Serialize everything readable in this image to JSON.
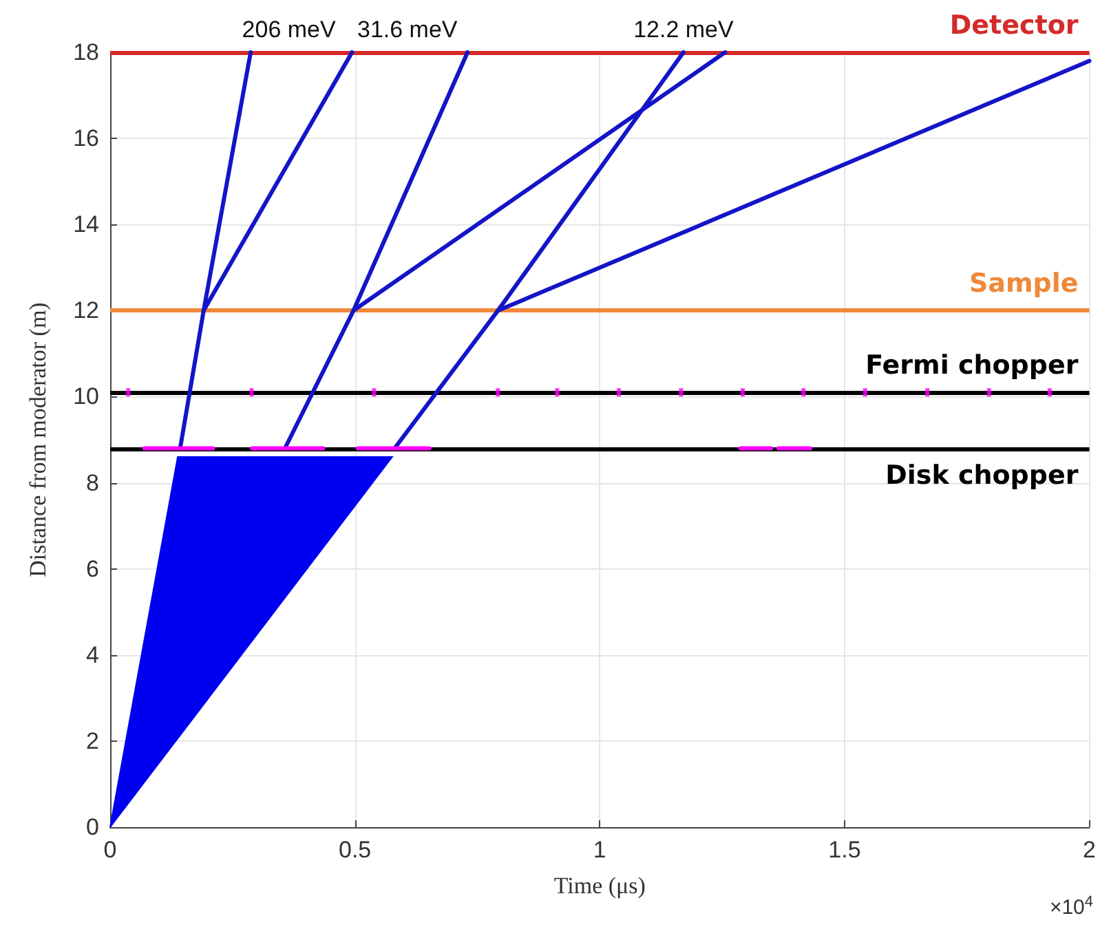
{
  "chart_data": {
    "type": "line",
    "xlabel": "Time (μs)",
    "ylabel": "Distance from moderator (m)",
    "xlim": [
      0,
      2
    ],
    "xticks": [
      0,
      0.5,
      1,
      1.5,
      2
    ],
    "ylim": [
      0,
      18
    ],
    "yticks": [
      0,
      2,
      4,
      6,
      8,
      10,
      12,
      14,
      16,
      18
    ],
    "grid": true,
    "marker": "none",
    "line_style": "solid",
    "series": [
      {
        "type": "area",
        "color": "#0000f0",
        "x": [
          0,
          0.138,
          0.576
        ],
        "values": [
          0,
          8.6,
          8.6
        ]
      },
      {
        "type": "line",
        "color": "#ff00ff",
        "x": [
          0.07,
          0.21
        ],
        "values": [
          8.8,
          8.8
        ]
      },
      {
        "type": "line",
        "color": "#ff00ff",
        "x": [
          0.29,
          0.435
        ],
        "values": [
          8.8,
          8.8
        ]
      },
      {
        "type": "line",
        "color": "#ff00ff",
        "x": [
          0.506,
          0.652
        ],
        "values": [
          8.8,
          8.8
        ]
      },
      {
        "type": "line",
        "color": "#ff00ff",
        "x": [
          1.287,
          1.35
        ],
        "values": [
          8.8,
          8.8
        ]
      },
      {
        "type": "line",
        "color": "#ff00ff",
        "x": [
          1.365,
          1.43
        ],
        "values": [
          8.8,
          8.8
        ]
      },
      {
        "type": "scatter",
        "marker": "square",
        "color": "#ff00ff",
        "x": [
          0.037,
          0.289,
          0.539,
          0.792,
          0.913,
          1.039,
          1.166,
          1.292,
          1.416,
          1.542,
          1.669,
          1.795,
          1.919
        ],
        "values": [
          10.1,
          10.1,
          10.1,
          10.1,
          10.1,
          10.1,
          10.1,
          10.1,
          10.1,
          10.1,
          10.1,
          10.1,
          10.1
        ]
      },
      {
        "color": "#1414c8",
        "x": [
          0.143,
          0.191,
          0.287
        ],
        "values": [
          8.8,
          12,
          18
        ]
      },
      {
        "color": "#1414c8",
        "x": [
          0.191,
          0.494
        ],
        "values": [
          12,
          18
        ]
      },
      {
        "color": "#1414c8",
        "x": [
          0.357,
          0.497,
          0.73
        ],
        "values": [
          8.8,
          12,
          18
        ]
      },
      {
        "color": "#1414c8",
        "x": [
          0.497,
          1.256
        ],
        "values": [
          12,
          18
        ]
      },
      {
        "color": "#1414c8",
        "x": [
          0.581,
          0.792,
          1.171
        ],
        "values": [
          8.8,
          12,
          18
        ]
      },
      {
        "color": "#1414c8",
        "x": [
          0.792,
          2.0
        ],
        "values": [
          12,
          17.8
        ]
      }
    ],
    "ref_lines": [
      {
        "axis": "y",
        "value": 18,
        "label": "Detector",
        "color": "#d42a2a"
      },
      {
        "axis": "y",
        "value": 12,
        "label": "Sample",
        "color": "#f0883a"
      },
      {
        "axis": "y",
        "value": 10.1,
        "label": "Fermi chopper",
        "color": "#000000"
      },
      {
        "axis": "y",
        "value": 8.8,
        "label": "Disk chopper",
        "color": "#000000"
      }
    ],
    "annotations": [
      {
        "text": "206 meV",
        "x": 0.365,
        "y": 18
      },
      {
        "text": "31.6 meV",
        "x": 0.607,
        "y": 18
      },
      {
        "text": "12.2 meV",
        "x": 1.171,
        "y": 18
      },
      "×10$^{4}$"
    ]
  }
}
